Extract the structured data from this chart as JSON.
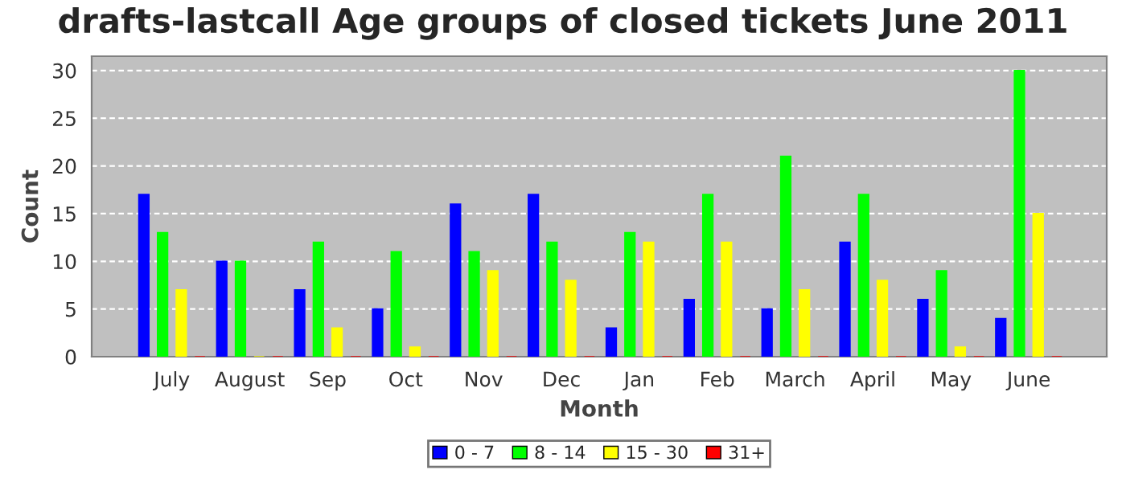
{
  "chart_data": {
    "type": "bar",
    "title": "drafts-lastcall Age groups of closed tickets June 2011",
    "xlabel": "Month",
    "ylabel": "Count",
    "categories": [
      "July",
      "August",
      "Sep",
      "Oct",
      "Nov",
      "Dec",
      "Jan",
      "Feb",
      "March",
      "April",
      "May",
      "June"
    ],
    "series": [
      {
        "name": "0 - 7",
        "color": "#0000ff",
        "values": [
          17,
          10,
          7,
          5,
          16,
          17,
          3,
          6,
          5,
          12,
          6,
          4
        ]
      },
      {
        "name": "8 - 14",
        "color": "#00ff00",
        "values": [
          13,
          10,
          12,
          11,
          11,
          12,
          13,
          17,
          21,
          17,
          9,
          30
        ]
      },
      {
        "name": "15 - 30",
        "color": "#ffff00",
        "values": [
          7,
          0,
          3,
          1,
          9,
          8,
          12,
          12,
          7,
          8,
          1,
          15
        ]
      },
      {
        "name": "31+",
        "color": "#ff0000",
        "values": [
          0,
          0,
          0,
          0,
          0,
          0,
          0,
          0,
          0,
          0,
          0,
          0
        ]
      }
    ],
    "ylim": [
      0,
      31.5
    ],
    "yticks": [
      0,
      5,
      10,
      15,
      20,
      25,
      30
    ],
    "grid": "y",
    "legend": "bottom"
  }
}
